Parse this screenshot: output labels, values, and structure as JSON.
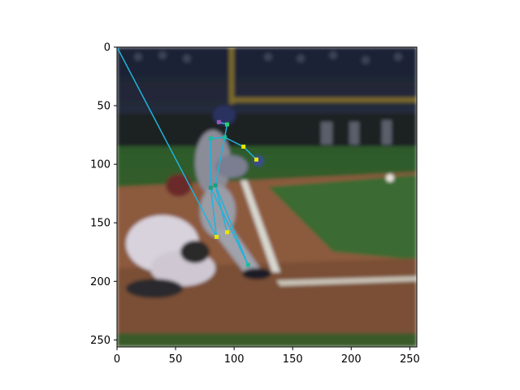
{
  "figure": {
    "image_description_tag": "baseball-batter-pose-keypoints",
    "x_ticks": [
      0,
      50,
      100,
      150,
      200,
      250
    ],
    "y_ticks": [
      0,
      50,
      100,
      150,
      200,
      250
    ],
    "x_range": [
      0,
      256
    ],
    "y_range": [
      256,
      0
    ]
  },
  "pose": {
    "keypoints": [
      {
        "name": "head-top",
        "x": 87,
        "y": 64,
        "color": "#9b59b6"
      },
      {
        "name": "neck",
        "x": 94,
        "y": 66,
        "color": "#2ecc71"
      },
      {
        "name": "right-shoulder",
        "x": 80,
        "y": 78,
        "color": "#1abc9c"
      },
      {
        "name": "left-shoulder",
        "x": 92,
        "y": 77,
        "color": "#1abc9c"
      },
      {
        "name": "left-elbow",
        "x": 108,
        "y": 85,
        "color": "#e6e600"
      },
      {
        "name": "left-wrist",
        "x": 119,
        "y": 96,
        "color": "#e6e600"
      },
      {
        "name": "right-hip",
        "x": 80,
        "y": 120,
        "color": "#16a085"
      },
      {
        "name": "left-hip",
        "x": 84,
        "y": 118,
        "color": "#16a085"
      },
      {
        "name": "right-knee",
        "x": 85,
        "y": 162,
        "color": "#e6e600"
      },
      {
        "name": "left-knee",
        "x": 94,
        "y": 158,
        "color": "#e6e600"
      },
      {
        "name": "left-ankle",
        "x": 112,
        "y": 186,
        "color": "#1abc9c"
      },
      {
        "name": "origin",
        "x": 0,
        "y": 0,
        "color": "#1fa9d6"
      }
    ],
    "limb_color": "#1fb3dc",
    "orange_color": "#e67e22"
  }
}
